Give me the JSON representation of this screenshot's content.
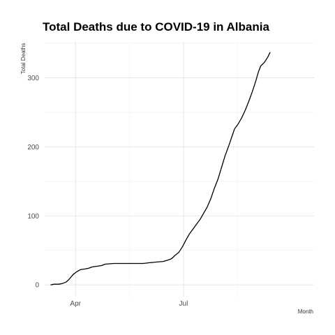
{
  "chart_data": {
    "type": "line",
    "title": "Total Deaths due to COVID-19 in Albania",
    "xlabel": "Month",
    "ylabel": "Total Deaths",
    "x_tick_labels": [
      "Apr",
      "Jul"
    ],
    "x_tick_dates": [
      "2020-04-01",
      "2020-07-01"
    ],
    "xlim": [
      "2020-03-06",
      "2020-10-19"
    ],
    "y_ticks": [
      0,
      100,
      200,
      300
    ],
    "ylim": [
      -17,
      352
    ],
    "grid": true,
    "legend": "none",
    "line_color": "#000000",
    "series": [
      {
        "points": [
          [
            "2020-03-11",
            0
          ],
          [
            "2020-03-14",
            1
          ],
          [
            "2020-03-18",
            1
          ],
          [
            "2020-03-21",
            2
          ],
          [
            "2020-03-24",
            4
          ],
          [
            "2020-03-26",
            7
          ],
          [
            "2020-03-28",
            11
          ],
          [
            "2020-03-30",
            15
          ],
          [
            "2020-04-02",
            19
          ],
          [
            "2020-04-05",
            22
          ],
          [
            "2020-04-09",
            23
          ],
          [
            "2020-04-12",
            24
          ],
          [
            "2020-04-15",
            26
          ],
          [
            "2020-04-19",
            27
          ],
          [
            "2020-04-23",
            28
          ],
          [
            "2020-04-26",
            30
          ],
          [
            "2020-05-03",
            31
          ],
          [
            "2020-05-15",
            31
          ],
          [
            "2020-05-28",
            31
          ],
          [
            "2020-06-02",
            32
          ],
          [
            "2020-06-08",
            33
          ],
          [
            "2020-06-14",
            34
          ],
          [
            "2020-06-18",
            36
          ],
          [
            "2020-06-21",
            38
          ],
          [
            "2020-06-24",
            43
          ],
          [
            "2020-06-27",
            47
          ],
          [
            "2020-06-30",
            55
          ],
          [
            "2020-07-03",
            65
          ],
          [
            "2020-07-06",
            74
          ],
          [
            "2020-07-09",
            81
          ],
          [
            "2020-07-12",
            88
          ],
          [
            "2020-07-15",
            95
          ],
          [
            "2020-07-18",
            104
          ],
          [
            "2020-07-21",
            113
          ],
          [
            "2020-07-24",
            125
          ],
          [
            "2020-07-27",
            140
          ],
          [
            "2020-07-30",
            153
          ],
          [
            "2020-08-02",
            170
          ],
          [
            "2020-08-05",
            187
          ],
          [
            "2020-08-08",
            201
          ],
          [
            "2020-08-11",
            216
          ],
          [
            "2020-08-13",
            226
          ],
          [
            "2020-08-16",
            233
          ],
          [
            "2020-08-19",
            242
          ],
          [
            "2020-08-22",
            253
          ],
          [
            "2020-08-25",
            266
          ],
          [
            "2020-08-28",
            280
          ],
          [
            "2020-08-31",
            296
          ],
          [
            "2020-09-02",
            308
          ],
          [
            "2020-09-04",
            317
          ],
          [
            "2020-09-07",
            322
          ],
          [
            "2020-09-10",
            330
          ],
          [
            "2020-09-12",
            337
          ]
        ]
      }
    ]
  }
}
